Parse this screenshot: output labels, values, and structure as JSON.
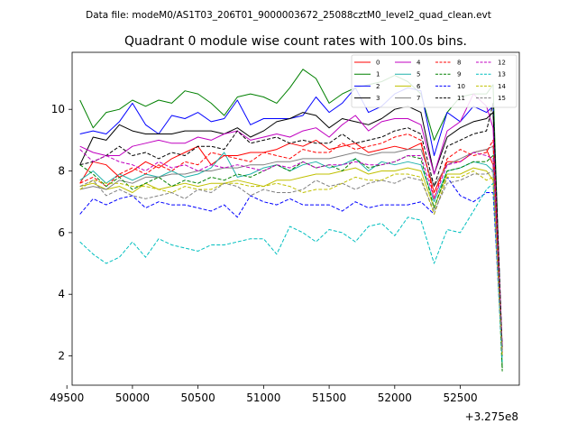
{
  "figure": {
    "suptitle": "Data file: modeM0/AS1T03_206T01_9000003672_25088cztM0_level2_quad_clean.evt",
    "title": "Quadrant 0 module wise count rates with 100.0s bins.",
    "x_offset_label": "+3.275e8"
  },
  "chart_data": {
    "type": "line",
    "title": "Quadrant 0 module wise count rates with 100.0s bins.",
    "xlabel": "",
    "ylabel": "",
    "x_offset": "+3.275e8",
    "xlim": [
      49540,
      52950
    ],
    "ylim": [
      1.05,
      11.85
    ],
    "xticks": [
      49500,
      50000,
      50500,
      51000,
      51500,
      52000,
      52500
    ],
    "yticks": [
      2,
      4,
      6,
      8,
      10
    ],
    "grid": false,
    "legend_placement": "top-right",
    "legend_columns": 4,
    "x": [
      49600,
      49700,
      49800,
      49900,
      50000,
      50100,
      50200,
      50300,
      50400,
      50500,
      50600,
      50700,
      50800,
      50900,
      51000,
      51100,
      51200,
      51300,
      51400,
      51500,
      51600,
      51700,
      51800,
      51900,
      52000,
      52100,
      52200,
      52300,
      52400,
      52500,
      52600,
      52700,
      52750,
      52820
    ],
    "series": [
      {
        "name": "0",
        "color": "#ff0000",
        "dash": "solid",
        "values": [
          7.6,
          8.3,
          8.2,
          7.8,
          8.0,
          8.3,
          8.1,
          8.4,
          8.6,
          8.8,
          8.2,
          8.5,
          8.5,
          8.6,
          8.6,
          8.7,
          8.9,
          8.8,
          9.0,
          8.7,
          8.8,
          8.9,
          8.6,
          8.7,
          8.8,
          8.7,
          8.9,
          7.3,
          8.3,
          8.3,
          8.6,
          8.7,
          8.2,
          2.0
        ]
      },
      {
        "name": "1",
        "color": "#008000",
        "dash": "solid",
        "values": [
          10.3,
          9.4,
          9.9,
          10.0,
          10.3,
          10.1,
          10.3,
          10.2,
          10.6,
          10.5,
          10.2,
          9.8,
          10.4,
          10.5,
          10.4,
          10.2,
          10.7,
          11.3,
          11.0,
          10.2,
          10.5,
          10.7,
          10.8,
          10.9,
          11.1,
          10.9,
          10.5,
          9.0,
          9.9,
          10.4,
          10.5,
          10.5,
          10.8,
          1.6
        ]
      },
      {
        "name": "2",
        "color": "#0000ff",
        "dash": "solid",
        "values": [
          9.2,
          9.3,
          9.2,
          9.6,
          10.2,
          9.5,
          9.2,
          9.8,
          9.7,
          9.9,
          9.6,
          9.7,
          10.3,
          9.5,
          9.7,
          9.7,
          9.7,
          9.8,
          10.4,
          9.9,
          10.2,
          10.7,
          9.9,
          10.1,
          10.5,
          10.7,
          10.6,
          8.5,
          9.9,
          9.6,
          10.1,
          9.9,
          10.1,
          2.0
        ]
      },
      {
        "name": "3",
        "color": "#000000",
        "dash": "solid",
        "values": [
          8.2,
          9.1,
          9.0,
          9.5,
          9.3,
          9.2,
          9.2,
          9.2,
          9.3,
          9.3,
          9.3,
          9.2,
          9.4,
          9.1,
          9.3,
          9.6,
          9.7,
          9.9,
          9.8,
          9.4,
          9.7,
          9.6,
          9.5,
          9.7,
          10.0,
          10.1,
          9.9,
          7.9,
          9.1,
          9.4,
          9.6,
          9.7,
          9.9,
          2.2
        ]
      },
      {
        "name": "4",
        "color": "#c000c0",
        "dash": "solid",
        "values": [
          8.8,
          8.6,
          8.5,
          8.5,
          8.8,
          8.9,
          9.0,
          8.9,
          8.9,
          9.1,
          9.0,
          9.2,
          9.3,
          9.0,
          9.1,
          9.2,
          9.1,
          9.3,
          9.4,
          9.1,
          9.5,
          9.8,
          9.3,
          9.6,
          9.7,
          9.7,
          9.5,
          7.9,
          9.3,
          9.6,
          10.5,
          10.1,
          9.4,
          2.3
        ]
      },
      {
        "name": "5",
        "color": "#20b2aa",
        "dash": "solid",
        "values": [
          7.7,
          8.0,
          7.6,
          7.9,
          7.7,
          7.9,
          7.8,
          8.0,
          7.8,
          7.9,
          8.1,
          8.6,
          7.8,
          7.9,
          8.1,
          8.2,
          8.0,
          8.2,
          8.3,
          8.1,
          8.2,
          8.4,
          8.0,
          8.3,
          8.2,
          8.3,
          8.2,
          7.0,
          8.0,
          8.1,
          8.3,
          8.2,
          8.0,
          2.1
        ]
      },
      {
        "name": "6",
        "color": "#c0c000",
        "dash": "solid",
        "values": [
          7.5,
          7.6,
          7.4,
          7.5,
          7.3,
          7.6,
          7.4,
          7.5,
          7.6,
          7.5,
          7.6,
          7.6,
          7.7,
          7.6,
          7.5,
          7.7,
          7.7,
          7.8,
          7.9,
          7.9,
          8.0,
          8.1,
          7.9,
          8.0,
          8.0,
          8.1,
          8.0,
          6.8,
          7.9,
          7.9,
          8.1,
          8.0,
          7.7,
          2.0
        ]
      },
      {
        "name": "7",
        "color": "#808080",
        "dash": "solid",
        "values": [
          7.4,
          7.5,
          7.4,
          7.7,
          7.6,
          7.8,
          7.8,
          7.9,
          7.9,
          8.0,
          8.0,
          8.1,
          8.1,
          8.2,
          8.2,
          8.3,
          8.3,
          8.4,
          8.4,
          8.4,
          8.5,
          8.6,
          8.5,
          8.6,
          8.6,
          8.7,
          8.7,
          7.5,
          8.2,
          8.4,
          8.6,
          8.7,
          8.8,
          2.1
        ]
      },
      {
        "name": "8",
        "color": "#ff0000",
        "dash": "dashed",
        "values": [
          7.6,
          7.8,
          7.5,
          7.9,
          8.1,
          7.9,
          8.2,
          8.0,
          8.3,
          8.2,
          8.6,
          8.5,
          8.4,
          8.3,
          8.6,
          8.5,
          8.4,
          8.7,
          8.6,
          8.6,
          8.9,
          8.7,
          8.8,
          8.9,
          9.1,
          9.2,
          9.0,
          7.1,
          8.4,
          8.7,
          8.5,
          8.6,
          9.0,
          2.1
        ]
      },
      {
        "name": "9",
        "color": "#008000",
        "dash": "dashed",
        "values": [
          8.2,
          7.9,
          7.5,
          7.8,
          7.4,
          7.6,
          7.8,
          7.5,
          7.7,
          7.6,
          7.8,
          7.7,
          7.9,
          7.8,
          8.0,
          8.2,
          8.0,
          8.3,
          8.1,
          8.2,
          8.0,
          8.4,
          8.1,
          8.2,
          8.3,
          8.5,
          8.4,
          6.8,
          8.0,
          8.1,
          8.3,
          8.3,
          8.5,
          1.5
        ]
      },
      {
        "name": "10",
        "color": "#0000ff",
        "dash": "dashed",
        "values": [
          6.6,
          7.1,
          6.9,
          7.1,
          7.2,
          6.8,
          7.0,
          6.9,
          6.9,
          6.8,
          6.7,
          6.9,
          6.5,
          7.2,
          7.0,
          6.9,
          7.1,
          6.9,
          6.9,
          6.9,
          6.7,
          7.0,
          6.8,
          6.9,
          6.9,
          6.9,
          7.0,
          6.6,
          7.8,
          7.2,
          7.0,
          7.3,
          7.3,
          2.0
        ]
      },
      {
        "name": "11",
        "color": "#000000",
        "dash": "dashed",
        "values": [
          8.2,
          8.3,
          8.5,
          8.8,
          8.5,
          8.6,
          8.4,
          8.6,
          8.5,
          8.8,
          8.8,
          8.7,
          9.3,
          8.9,
          9.0,
          9.1,
          8.9,
          9.0,
          8.9,
          8.9,
          9.2,
          8.9,
          9.0,
          9.1,
          9.3,
          9.4,
          9.2,
          7.5,
          8.8,
          9.0,
          9.2,
          9.3,
          10.2,
          2.2
        ]
      },
      {
        "name": "12",
        "color": "#c000c0",
        "dash": "dashed",
        "values": [
          8.7,
          8.3,
          8.5,
          8.3,
          8.2,
          8.0,
          8.3,
          8.1,
          8.2,
          8.0,
          8.2,
          8.1,
          8.2,
          8.1,
          8.0,
          8.2,
          8.1,
          8.3,
          8.1,
          8.2,
          8.2,
          8.3,
          8.2,
          8.2,
          8.3,
          8.5,
          8.5,
          7.1,
          8.2,
          8.3,
          8.6,
          8.5,
          8.4,
          2.1
        ]
      },
      {
        "name": "13",
        "color": "#00bfbf",
        "dash": "dashed",
        "values": [
          5.7,
          5.3,
          5.0,
          5.2,
          5.7,
          5.2,
          5.8,
          5.6,
          5.5,
          5.4,
          5.6,
          5.6,
          5.7,
          5.8,
          5.8,
          5.3,
          6.2,
          6.0,
          5.7,
          6.1,
          6.0,
          5.7,
          6.2,
          6.3,
          5.9,
          6.5,
          6.4,
          5.0,
          6.1,
          6.0,
          6.7,
          7.4,
          7.6,
          1.8
        ]
      },
      {
        "name": "14",
        "color": "#c0c000",
        "dash": "dashed",
        "values": [
          7.4,
          7.7,
          7.6,
          7.6,
          7.5,
          7.5,
          7.4,
          7.3,
          7.5,
          7.4,
          7.4,
          7.6,
          7.6,
          7.5,
          7.5,
          7.6,
          7.5,
          7.3,
          7.4,
          7.4,
          7.6,
          7.8,
          7.7,
          7.7,
          7.9,
          7.9,
          7.8,
          6.6,
          7.8,
          7.8,
          8.0,
          7.7,
          7.8,
          2.0
        ]
      },
      {
        "name": "15",
        "color": "#808080",
        "dash": "dashed",
        "values": [
          7.5,
          7.7,
          7.2,
          7.4,
          7.2,
          7.1,
          7.2,
          7.3,
          7.1,
          7.4,
          7.3,
          7.6,
          7.5,
          7.2,
          7.4,
          7.3,
          7.3,
          7.4,
          7.7,
          7.5,
          7.6,
          7.4,
          7.6,
          7.7,
          7.6,
          7.8,
          7.7,
          6.7,
          7.6,
          7.7,
          7.9,
          7.9,
          8.0,
          2.1
        ]
      }
    ]
  }
}
